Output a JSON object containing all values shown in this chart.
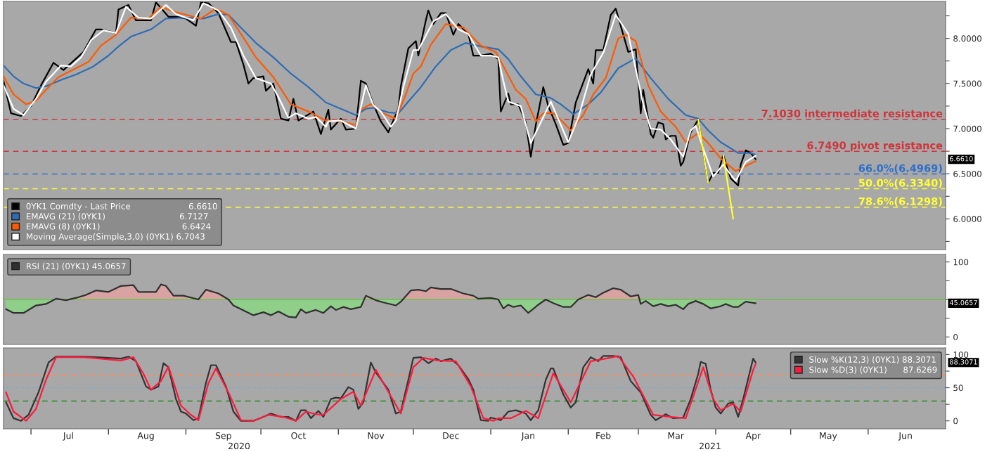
{
  "chart_data": [
    {
      "type": "line",
      "xlim": [
        "2020-06-20",
        "2021-07-02"
      ],
      "ylim": [
        5.66,
        8.41
      ],
      "yticks": [
        {
          "value": 5.75,
          "label": null
        },
        {
          "value": 6.0,
          "label": "6.0000"
        },
        {
          "value": 6.25,
          "label": null
        },
        {
          "value": 6.5,
          "label": "6.5000"
        },
        {
          "value": 6.75,
          "label": null
        },
        {
          "value": 7.0,
          "label": "7.0000"
        },
        {
          "value": 7.25,
          "label": null
        },
        {
          "value": 7.5,
          "label": "7.5000"
        },
        {
          "value": 7.75,
          "label": null
        },
        {
          "value": 8.0,
          "label": "8.0000"
        },
        {
          "value": 8.25,
          "label": null
        }
      ],
      "tick_labels": "y",
      "legend": "bottom left",
      "series": [
        {
          "name": "0YK1 Comdty - Last Price                      6.6610",
          "color": "#000000",
          "x": [
            "2020-06-20",
            "2020-06-23",
            "2020-06-27",
            "2020-07-01",
            "2020-07-05",
            "2020-07-10",
            "2020-07-14",
            "2020-07-16",
            "2020-07-22",
            "2020-07-27",
            "2020-07-29",
            "2020-08-04",
            "2020-08-05",
            "2020-08-09",
            "2020-08-12",
            "2020-08-18",
            "2020-08-20",
            "2020-08-25",
            "2020-08-28",
            "2020-09-01",
            "2020-09-05",
            "2020-09-07",
            "2020-09-10",
            "2020-09-14",
            "2020-09-19",
            "2020-09-21",
            "2020-09-24",
            "2020-09-26",
            "2020-09-28",
            "2020-10-02",
            "2020-10-03",
            "2020-10-06",
            "2020-10-09",
            "2020-10-12",
            "2020-10-14",
            "2020-10-16",
            "2020-10-22",
            "2020-10-25",
            "2020-10-28",
            "2020-10-29",
            "2020-11-02",
            "2020-11-04",
            "2020-11-08",
            "2020-11-10",
            "2020-11-12",
            "2020-11-15",
            "2020-11-18",
            "2020-11-21",
            "2020-11-25",
            "2020-11-26",
            "2020-11-29",
            "2020-12-02",
            "2020-12-03",
            "2020-12-06",
            "2020-12-07",
            "2020-12-09",
            "2020-12-12",
            "2020-12-14",
            "2020-12-17",
            "2020-12-19",
            "2020-12-23",
            "2020-12-25",
            "2020-12-28",
            "2021-01-01",
            "2021-01-04",
            "2021-01-05",
            "2021-01-08",
            "2021-01-09",
            "2021-01-12",
            "2021-01-15",
            "2021-01-17",
            "2021-01-19",
            "2021-01-22",
            "2021-01-24",
            "2021-01-27",
            "2021-01-30",
            "2021-02-01",
            "2021-02-04",
            "2021-02-09",
            "2021-02-11",
            "2021-02-12",
            "2021-02-15",
            "2021-02-18",
            "2021-02-20",
            "2021-02-25",
            "2021-02-28",
            "2021-03-02",
            "2021-03-03",
            "2021-03-06",
            "2021-03-07",
            "2021-03-09",
            "2021-03-11",
            "2021-03-12",
            "2021-03-14",
            "2021-03-16",
            "2021-03-18",
            "2021-03-19",
            "2021-03-22",
            "2021-03-25",
            "2021-03-29",
            "2021-03-31",
            "2021-04-02",
            "2021-04-04",
            "2021-04-07",
            "2021-04-10",
            "2021-04-11",
            "2021-04-13",
            "2021-04-15",
            "2021-04-17"
          ],
          "values": [
            7.53,
            7.17,
            7.14,
            7.25,
            7.48,
            7.73,
            7.65,
            7.7,
            7.85,
            8.1,
            8.1,
            8.06,
            8.32,
            8.37,
            8.2,
            8.2,
            8.4,
            8.24,
            8.24,
            8.22,
            8.14,
            8.4,
            8.39,
            8.28,
            7.96,
            7.96,
            7.71,
            7.5,
            7.56,
            7.58,
            7.42,
            7.5,
            7.11,
            7.09,
            7.33,
            7.09,
            7.19,
            6.94,
            7.21,
            6.99,
            7.11,
            6.99,
            7.0,
            7.53,
            7.5,
            7.27,
            7.08,
            6.96,
            7.22,
            7.47,
            7.89,
            7.97,
            7.81,
            8.2,
            8.31,
            8.16,
            8.28,
            8.28,
            8.04,
            8.16,
            8.05,
            7.81,
            7.81,
            7.83,
            7.77,
            7.19,
            7.39,
            7.27,
            7.27,
            7.07,
            6.69,
            7.04,
            7.46,
            7.25,
            7.05,
            6.82,
            6.84,
            7.29,
            7.66,
            7.5,
            7.87,
            7.87,
            8.26,
            8.33,
            7.85,
            7.88,
            7.17,
            7.43,
            6.94,
            6.9,
            7.07,
            7.05,
            6.88,
            6.92,
            6.92,
            6.59,
            6.63,
            6.96,
            7.1,
            6.4,
            6.51,
            6.51,
            6.71,
            6.45,
            6.37,
            6.6,
            6.76,
            6.73,
            6.66
          ]
        },
        {
          "name": "EMAVG (21) (0YK1)                            6.7127",
          "color": "#2e6db4",
          "x": [
            "2020-06-20",
            "2020-06-24",
            "2020-06-28",
            "2020-07-03",
            "2020-07-07",
            "2020-07-13",
            "2020-07-19",
            "2020-07-26",
            "2020-08-01",
            "2020-08-05",
            "2020-08-10",
            "2020-08-18",
            "2020-08-24",
            "2020-09-01",
            "2020-09-08",
            "2020-09-14",
            "2020-09-18",
            "2020-09-23",
            "2020-09-29",
            "2020-10-06",
            "2020-10-13",
            "2020-10-20",
            "2020-10-27",
            "2020-11-02",
            "2020-11-08",
            "2020-11-12",
            "2020-11-15",
            "2020-11-21",
            "2020-11-25",
            "2020-11-29",
            "2020-12-04",
            "2020-12-10",
            "2020-12-16",
            "2020-12-22",
            "2020-12-28",
            "2021-01-04",
            "2021-01-08",
            "2021-01-13",
            "2021-01-19",
            "2021-01-25",
            "2021-01-29",
            "2021-02-03",
            "2021-02-09",
            "2021-02-14",
            "2021-02-21",
            "2021-02-28",
            "2021-03-06",
            "2021-03-13",
            "2021-03-20",
            "2021-03-25",
            "2021-03-29",
            "2021-04-03",
            "2021-04-10",
            "2021-04-15",
            "2021-04-17"
          ],
          "values": [
            7.7,
            7.58,
            7.5,
            7.45,
            7.47,
            7.54,
            7.6,
            7.69,
            7.81,
            7.91,
            8.02,
            8.1,
            8.22,
            8.23,
            8.22,
            8.27,
            8.26,
            8.12,
            7.95,
            7.79,
            7.61,
            7.46,
            7.29,
            7.22,
            7.15,
            7.22,
            7.23,
            7.18,
            7.17,
            7.3,
            7.46,
            7.69,
            7.87,
            7.95,
            7.91,
            7.88,
            7.77,
            7.58,
            7.38,
            7.34,
            7.27,
            7.16,
            7.27,
            7.4,
            7.67,
            7.78,
            7.56,
            7.33,
            7.15,
            7.11,
            6.98,
            6.85,
            6.73,
            6.73,
            6.71
          ]
        },
        {
          "name": "EMAVG (8) (0YK1)                               6.6424",
          "color": "#ff5a00",
          "x": [
            "2020-06-20",
            "2020-06-24",
            "2020-06-29",
            "2020-07-03",
            "2020-07-07",
            "2020-07-12",
            "2020-07-17",
            "2020-07-24",
            "2020-07-29",
            "2020-08-04",
            "2020-08-10",
            "2020-08-17",
            "2020-08-22",
            "2020-08-28",
            "2020-09-07",
            "2020-09-13",
            "2020-09-18",
            "2020-09-23",
            "2020-09-29",
            "2020-10-06",
            "2020-10-13",
            "2020-10-20",
            "2020-10-27",
            "2020-11-02",
            "2020-11-08",
            "2020-11-10",
            "2020-11-14",
            "2020-11-19",
            "2020-11-24",
            "2020-11-28",
            "2020-12-01",
            "2020-12-04",
            "2020-12-08",
            "2020-12-14",
            "2020-12-21",
            "2020-12-28",
            "2021-01-03",
            "2021-01-07",
            "2021-01-11",
            "2021-01-15",
            "2021-01-19",
            "2021-01-22",
            "2021-01-26",
            "2021-01-30",
            "2021-02-02",
            "2021-02-07",
            "2021-02-11",
            "2021-02-16",
            "2021-02-21",
            "2021-02-24",
            "2021-02-28",
            "2021-03-05",
            "2021-03-10",
            "2021-03-16",
            "2021-03-20",
            "2021-03-25",
            "2021-03-29",
            "2021-04-03",
            "2021-04-09",
            "2021-04-14",
            "2021-04-17"
          ],
          "values": [
            7.58,
            7.38,
            7.27,
            7.31,
            7.43,
            7.57,
            7.64,
            7.74,
            7.92,
            8.04,
            8.23,
            8.22,
            8.35,
            8.29,
            8.22,
            8.33,
            8.26,
            8.05,
            7.79,
            7.57,
            7.27,
            7.19,
            7.09,
            7.08,
            7.04,
            7.21,
            7.27,
            7.17,
            7.11,
            7.38,
            7.61,
            7.69,
            7.93,
            8.16,
            8.12,
            7.92,
            7.85,
            7.64,
            7.43,
            7.33,
            7.08,
            7.17,
            7.17,
            7.07,
            6.98,
            7.15,
            7.38,
            7.56,
            8.0,
            8.04,
            7.97,
            7.48,
            7.19,
            7.02,
            6.85,
            6.95,
            6.84,
            6.67,
            6.53,
            6.6,
            6.64
          ]
        },
        {
          "name": "Moving Average(Simple,3,0) (0YK1) 6.7043",
          "color": "#ffffff",
          "x": [
            "2020-06-20",
            "2020-06-24",
            "2020-06-28",
            "2020-07-03",
            "2020-07-07",
            "2020-07-13",
            "2020-07-17",
            "2020-07-21",
            "2020-07-25",
            "2020-07-30",
            "2020-08-04",
            "2020-08-08",
            "2020-08-13",
            "2020-08-18",
            "2020-08-24",
            "2020-08-28",
            "2020-09-04",
            "2020-09-08",
            "2020-09-14",
            "2020-09-19",
            "2020-09-24",
            "2020-09-29",
            "2020-10-05",
            "2020-10-08",
            "2020-10-12",
            "2020-10-15",
            "2020-10-20",
            "2020-10-23",
            "2020-10-27",
            "2020-10-28",
            "2020-11-02",
            "2020-11-08",
            "2020-11-12",
            "2020-11-15",
            "2020-11-18",
            "2020-11-22",
            "2020-11-24",
            "2020-11-27",
            "2020-12-01",
            "2020-12-03",
            "2020-12-09",
            "2020-12-14",
            "2020-12-19",
            "2020-12-23",
            "2020-12-28",
            "2021-01-01",
            "2021-01-04",
            "2021-01-06",
            "2021-01-08",
            "2021-01-13",
            "2021-01-17",
            "2021-01-25",
            "2021-01-27",
            "2021-02-01",
            "2021-02-05",
            "2021-02-10",
            "2021-02-15",
            "2021-02-20",
            "2021-02-25",
            "2021-03-03",
            "2021-03-06",
            "2021-03-10",
            "2021-03-14",
            "2021-03-19",
            "2021-03-22",
            "2021-03-24",
            "2021-03-27",
            "2021-03-31",
            "2021-04-04",
            "2021-04-09",
            "2021-04-13",
            "2021-04-17"
          ],
          "values": [
            7.48,
            7.22,
            7.15,
            7.33,
            7.52,
            7.7,
            7.69,
            7.79,
            7.98,
            8.09,
            8.06,
            8.35,
            8.23,
            8.22,
            8.37,
            8.27,
            8.2,
            8.39,
            8.31,
            8.12,
            7.81,
            7.56,
            7.5,
            7.35,
            7.12,
            7.17,
            7.11,
            7.13,
            7.02,
            7.08,
            7.09,
            7.0,
            7.48,
            7.26,
            7.19,
            7.02,
            7.09,
            7.46,
            7.87,
            7.87,
            8.19,
            8.27,
            8.1,
            8.05,
            7.81,
            7.81,
            7.79,
            7.53,
            7.3,
            7.25,
            6.84,
            7.3,
            7.17,
            6.85,
            7.12,
            7.6,
            7.84,
            8.26,
            8.05,
            7.27,
            7.0,
            6.99,
            6.88,
            6.69,
            6.98,
            7.03,
            6.78,
            6.47,
            6.6,
            6.42,
            6.63,
            6.7
          ]
        },
        {
          "color": "#ffff33",
          "x": [
            "2021-03-25",
            "2021-03-29"
          ],
          "values": [
            7.1,
            6.4
          ]
        },
        {
          "color": "#ffff33",
          "x": [
            "2021-04-04",
            "2021-04-08"
          ],
          "values": [
            6.71,
            6.0
          ]
        }
      ],
      "ref_lines": [
        {
          "axis": "y",
          "value": 7.103,
          "label": "7.1030 intermediate resistance",
          "color": "#d0343c",
          "line_style": "dashed"
        },
        {
          "axis": "y",
          "value": 6.749,
          "label": "6.7490 pivot resistance",
          "color": "#d0343c",
          "line_style": "dashed"
        },
        {
          "axis": "y",
          "value": 6.4969,
          "label": "66.0%(6.4969)",
          "color": "#2e6fc9",
          "line_style": "dashed"
        },
        {
          "axis": "y",
          "value": 6.334,
          "label": "50.0%(6.3340)",
          "color": "#ffff33",
          "line_style": "dashed"
        },
        {
          "axis": "y",
          "value": 6.1298,
          "label": "78.6%(6.1298)",
          "color": "#ffff33",
          "line_style": "dashed"
        }
      ],
      "annotations": [
        "6.6610"
      ]
    },
    {
      "type": "area",
      "xlim": [
        "2020-06-20",
        "2021-07-02"
      ],
      "ylim": [
        -10,
        110
      ],
      "yticks": [
        {
          "value": 0,
          "label": "0"
        },
        {
          "value": 25,
          "label": null
        },
        {
          "value": 50,
          "label": null
        },
        {
          "value": 75,
          "label": null
        },
        {
          "value": 100,
          "label": "100"
        }
      ],
      "tick_labels": "y",
      "legend": "top left",
      "series": [
        {
          "name": "RSI (21) (0YK1) 45.0657",
          "type": "line",
          "color": "#303030",
          "x": [
            "2020-06-21",
            "2020-06-24",
            "2020-06-28",
            "2020-07-03",
            "2020-07-07",
            "2020-07-11",
            "2020-07-15",
            "2020-07-20",
            "2020-07-23",
            "2020-07-27",
            "2020-08-01",
            "2020-08-06",
            "2020-08-11",
            "2020-08-13",
            "2020-08-20",
            "2020-08-22",
            "2020-08-24",
            "2020-08-27",
            "2020-08-31",
            "2020-09-06",
            "2020-09-09",
            "2020-09-14",
            "2020-09-18",
            "2020-09-20",
            "2020-09-28",
            "2020-10-02",
            "2020-10-05",
            "2020-10-08",
            "2020-10-12",
            "2020-10-15",
            "2020-10-17",
            "2020-10-19",
            "2020-10-23",
            "2020-10-26",
            "2020-10-29",
            "2020-10-31",
            "2020-11-03",
            "2020-11-06",
            "2020-11-10",
            "2020-11-12",
            "2020-11-16",
            "2020-11-19",
            "2020-11-24",
            "2020-11-26",
            "2020-11-30",
            "2020-12-03",
            "2020-12-06",
            "2020-12-08",
            "2020-12-12",
            "2020-12-16",
            "2020-12-21",
            "2020-12-25",
            "2020-12-27",
            "2021-01-01",
            "2021-01-04",
            "2021-01-06",
            "2021-01-08",
            "2021-01-10",
            "2021-01-13",
            "2021-01-16",
            "2021-01-20",
            "2021-01-23",
            "2021-01-26",
            "2021-01-30",
            "2021-02-02",
            "2021-02-05",
            "2021-02-09",
            "2021-02-12",
            "2021-02-15",
            "2021-02-19",
            "2021-02-22",
            "2021-02-26",
            "2021-03-01",
            "2021-03-02",
            "2021-03-04",
            "2021-03-07",
            "2021-03-10",
            "2021-03-13",
            "2021-03-16",
            "2021-03-19",
            "2021-03-21",
            "2021-03-24",
            "2021-03-27",
            "2021-03-30",
            "2021-04-03",
            "2021-04-05",
            "2021-04-08",
            "2021-04-10",
            "2021-04-13",
            "2021-04-17"
          ],
          "values": [
            37,
            32,
            32,
            42,
            44,
            51,
            49,
            53,
            56,
            62,
            60,
            68,
            69,
            60,
            60,
            70,
            68,
            55,
            55,
            50,
            63,
            58,
            50,
            42,
            29,
            33,
            29,
            34,
            27,
            26,
            37,
            32,
            36,
            32,
            41,
            36,
            40,
            37,
            40,
            55,
            49,
            46,
            42,
            47,
            62,
            63,
            61,
            66,
            64,
            64,
            58,
            55,
            51,
            52,
            50,
            38,
            43,
            40,
            42,
            32,
            43,
            50,
            45,
            40,
            40,
            50,
            56,
            53,
            59,
            65,
            63,
            54,
            56,
            44,
            48,
            41,
            44,
            41,
            43,
            37,
            44,
            48,
            44,
            38,
            41,
            44,
            40,
            40,
            47,
            45
          ]
        }
      ],
      "ref_lines": [
        {
          "axis": "y",
          "value": 50,
          "color": "#6cc04a",
          "line_style": "solid"
        }
      ],
      "annotations": [
        "45.0657"
      ]
    },
    {
      "type": "line",
      "xlim": [
        "2020-06-20",
        "2021-07-02"
      ],
      "ylim": [
        -12,
        110
      ],
      "xticks": [
        {
          "value": "2020-07-01",
          "label": null
        },
        {
          "value": "2020-07-16",
          "label": "Jul"
        },
        {
          "value": "2020-08-01",
          "label": null
        },
        {
          "value": "2020-08-16",
          "label": "Aug"
        },
        {
          "value": "2020-09-01",
          "label": null
        },
        {
          "value": "2020-09-16",
          "label": "Sep"
        },
        {
          "value": "2020-10-01",
          "label": null
        },
        {
          "value": "2020-10-16",
          "label": "Oct"
        },
        {
          "value": "2020-11-01",
          "label": null
        },
        {
          "value": "2020-11-16",
          "label": "Nov"
        },
        {
          "value": "2020-12-01",
          "label": null
        },
        {
          "value": "2020-12-16",
          "label": "Dec"
        },
        {
          "value": "2021-01-01",
          "label": null
        },
        {
          "value": "2021-01-16",
          "label": "Jan"
        },
        {
          "value": "2021-02-01",
          "label": null
        },
        {
          "value": "2021-02-15",
          "label": "Feb"
        },
        {
          "value": "2021-03-01",
          "label": null
        },
        {
          "value": "2021-03-16",
          "label": "Mar"
        },
        {
          "value": "2021-04-01",
          "label": null
        },
        {
          "value": "2021-04-16",
          "label": "Apr"
        },
        {
          "value": "2021-05-01",
          "label": null
        },
        {
          "value": "2021-05-16",
          "label": "May"
        },
        {
          "value": "2021-06-01",
          "label": null
        },
        {
          "value": "2021-06-16",
          "label": "Jun"
        }
      ],
      "yticks": [
        0,
        {
          "value": 25,
          "label": null
        },
        50,
        {
          "value": 75,
          "label": null
        },
        100
      ],
      "legend": "top right",
      "series": [
        {
          "name": "Slow %K(12,3) (0YK1) 88.3071",
          "color": "#333333",
          "x": [
            "2020-06-21",
            "2020-06-24",
            "2020-06-27",
            "2020-06-30",
            "2020-07-04",
            "2020-07-08",
            "2020-07-11",
            "2020-07-15",
            "2020-07-22",
            "2020-07-27",
            "2020-08-01",
            "2020-08-06",
            "2020-08-09",
            "2020-08-12",
            "2020-08-16",
            "2020-08-18",
            "2020-08-21",
            "2020-08-23",
            "2020-08-25",
            "2020-08-28",
            "2020-08-30",
            "2020-09-01",
            "2020-09-04",
            "2020-09-06",
            "2020-09-09",
            "2020-09-11",
            "2020-09-13",
            "2020-09-17",
            "2020-09-20",
            "2020-09-23",
            "2020-09-28",
            "2020-10-02",
            "2020-10-05",
            "2020-10-09",
            "2020-10-12",
            "2020-10-15",
            "2020-10-17",
            "2020-10-19",
            "2020-10-21",
            "2020-10-24",
            "2020-10-26",
            "2020-10-29",
            "2020-10-31",
            "2020-11-02",
            "2020-11-05",
            "2020-11-07",
            "2020-11-09",
            "2020-11-11",
            "2020-11-14",
            "2020-11-16",
            "2020-11-21",
            "2020-11-24",
            "2020-11-26",
            "2020-11-29",
            "2020-12-01",
            "2020-12-04",
            "2020-12-07",
            "2020-12-10",
            "2020-12-12",
            "2020-12-16",
            "2020-12-19",
            "2020-12-23",
            "2020-12-25",
            "2020-12-28",
            "2020-12-31",
            "2021-01-01",
            "2021-01-05",
            "2021-01-08",
            "2021-01-11",
            "2021-01-15",
            "2021-01-17",
            "2021-01-20",
            "2021-01-23",
            "2021-01-25",
            "2021-01-26",
            "2021-01-30",
            "2021-02-02",
            "2021-02-04",
            "2021-02-07",
            "2021-02-10",
            "2021-02-13",
            "2021-02-15",
            "2021-02-19",
            "2021-02-22",
            "2021-02-26",
            "2021-03-02",
            "2021-03-06",
            "2021-03-08",
            "2021-03-12",
            "2021-03-15",
            "2021-03-19",
            "2021-03-22",
            "2021-03-25",
            "2021-03-26",
            "2021-03-28",
            "2021-03-30",
            "2021-04-01",
            "2021-04-03",
            "2021-04-06",
            "2021-04-08",
            "2021-04-10",
            "2021-04-12",
            "2021-04-15",
            "2021-04-16",
            "2021-04-17"
          ],
          "values": [
            28,
            4,
            0,
            9,
            43,
            88,
            97,
            97,
            97,
            96,
            95,
            94,
            97,
            90,
            52,
            47,
            52,
            87,
            81,
            33,
            14,
            11,
            1,
            4,
            57,
            84,
            84,
            52,
            14,
            0,
            0,
            6,
            11,
            6,
            6,
            0,
            16,
            16,
            4,
            15,
            6,
            33,
            35,
            34,
            51,
            47,
            18,
            28,
            88,
            73,
            47,
            11,
            14,
            62,
            95,
            96,
            87,
            94,
            90,
            94,
            84,
            63,
            47,
            1,
            0,
            5,
            1,
            14,
            16,
            11,
            1,
            16,
            62,
            79,
            79,
            40,
            20,
            28,
            81,
            96,
            90,
            98,
            98,
            96,
            60,
            43,
            9,
            1,
            10,
            4,
            5,
            33,
            71,
            89,
            86,
            47,
            20,
            11,
            26,
            28,
            6,
            33,
            79,
            94,
            88
          ]
        },
        {
          "name": "Slow %D(3) (0YK1)      87.6269",
          "color": "#ff1a3c",
          "x": [
            "2020-06-21",
            "2020-06-24",
            "2020-06-29",
            "2020-07-03",
            "2020-07-07",
            "2020-07-11",
            "2020-07-22",
            "2020-08-06",
            "2020-08-11",
            "2020-08-15",
            "2020-08-18",
            "2020-08-22",
            "2020-08-25",
            "2020-08-30",
            "2020-09-03",
            "2020-09-06",
            "2020-09-10",
            "2020-09-13",
            "2020-09-18",
            "2020-09-23",
            "2020-09-28",
            "2020-10-04",
            "2020-10-10",
            "2020-10-15",
            "2020-10-19",
            "2020-10-23",
            "2020-10-26",
            "2020-11-02",
            "2020-11-07",
            "2020-11-10",
            "2020-11-16",
            "2020-11-19",
            "2020-11-26",
            "2020-12-01",
            "2020-12-05",
            "2020-12-11",
            "2020-12-18",
            "2020-12-24",
            "2020-12-29",
            "2021-01-02",
            "2021-01-04",
            "2021-01-09",
            "2021-01-15",
            "2021-01-20",
            "2021-01-26",
            "2021-02-02",
            "2021-02-10",
            "2021-02-16",
            "2021-02-21",
            "2021-02-27",
            "2021-03-07",
            "2021-03-14",
            "2021-03-20",
            "2021-03-27",
            "2021-03-31",
            "2021-04-03",
            "2021-04-08",
            "2021-04-11",
            "2021-04-16",
            "2021-04-17"
          ],
          "values": [
            43,
            14,
            0,
            18,
            62,
            96,
            96,
            91,
            96,
            71,
            47,
            60,
            82,
            23,
            9,
            1,
            57,
            79,
            43,
            1,
            0,
            9,
            6,
            0,
            14,
            10,
            9,
            33,
            44,
            23,
            77,
            57,
            11,
            81,
            95,
            91,
            90,
            52,
            4,
            0,
            4,
            4,
            15,
            4,
            72,
            28,
            90,
            94,
            98,
            67,
            9,
            6,
            4,
            81,
            33,
            16,
            26,
            14,
            77,
            86
          ]
        }
      ],
      "ref_lines": [
        {
          "axis": "y",
          "value": 70,
          "color": "#ff8c5a",
          "line_style": "dashed"
        },
        {
          "axis": "y",
          "value": 50,
          "color": "#6fa8dc",
          "line_style": "dotted"
        },
        {
          "axis": "y",
          "value": 30,
          "color": "#1e8c1e",
          "line_style": "dashed"
        }
      ],
      "annotations": [
        "88.3071",
        "2020",
        "2021"
      ]
    }
  ]
}
